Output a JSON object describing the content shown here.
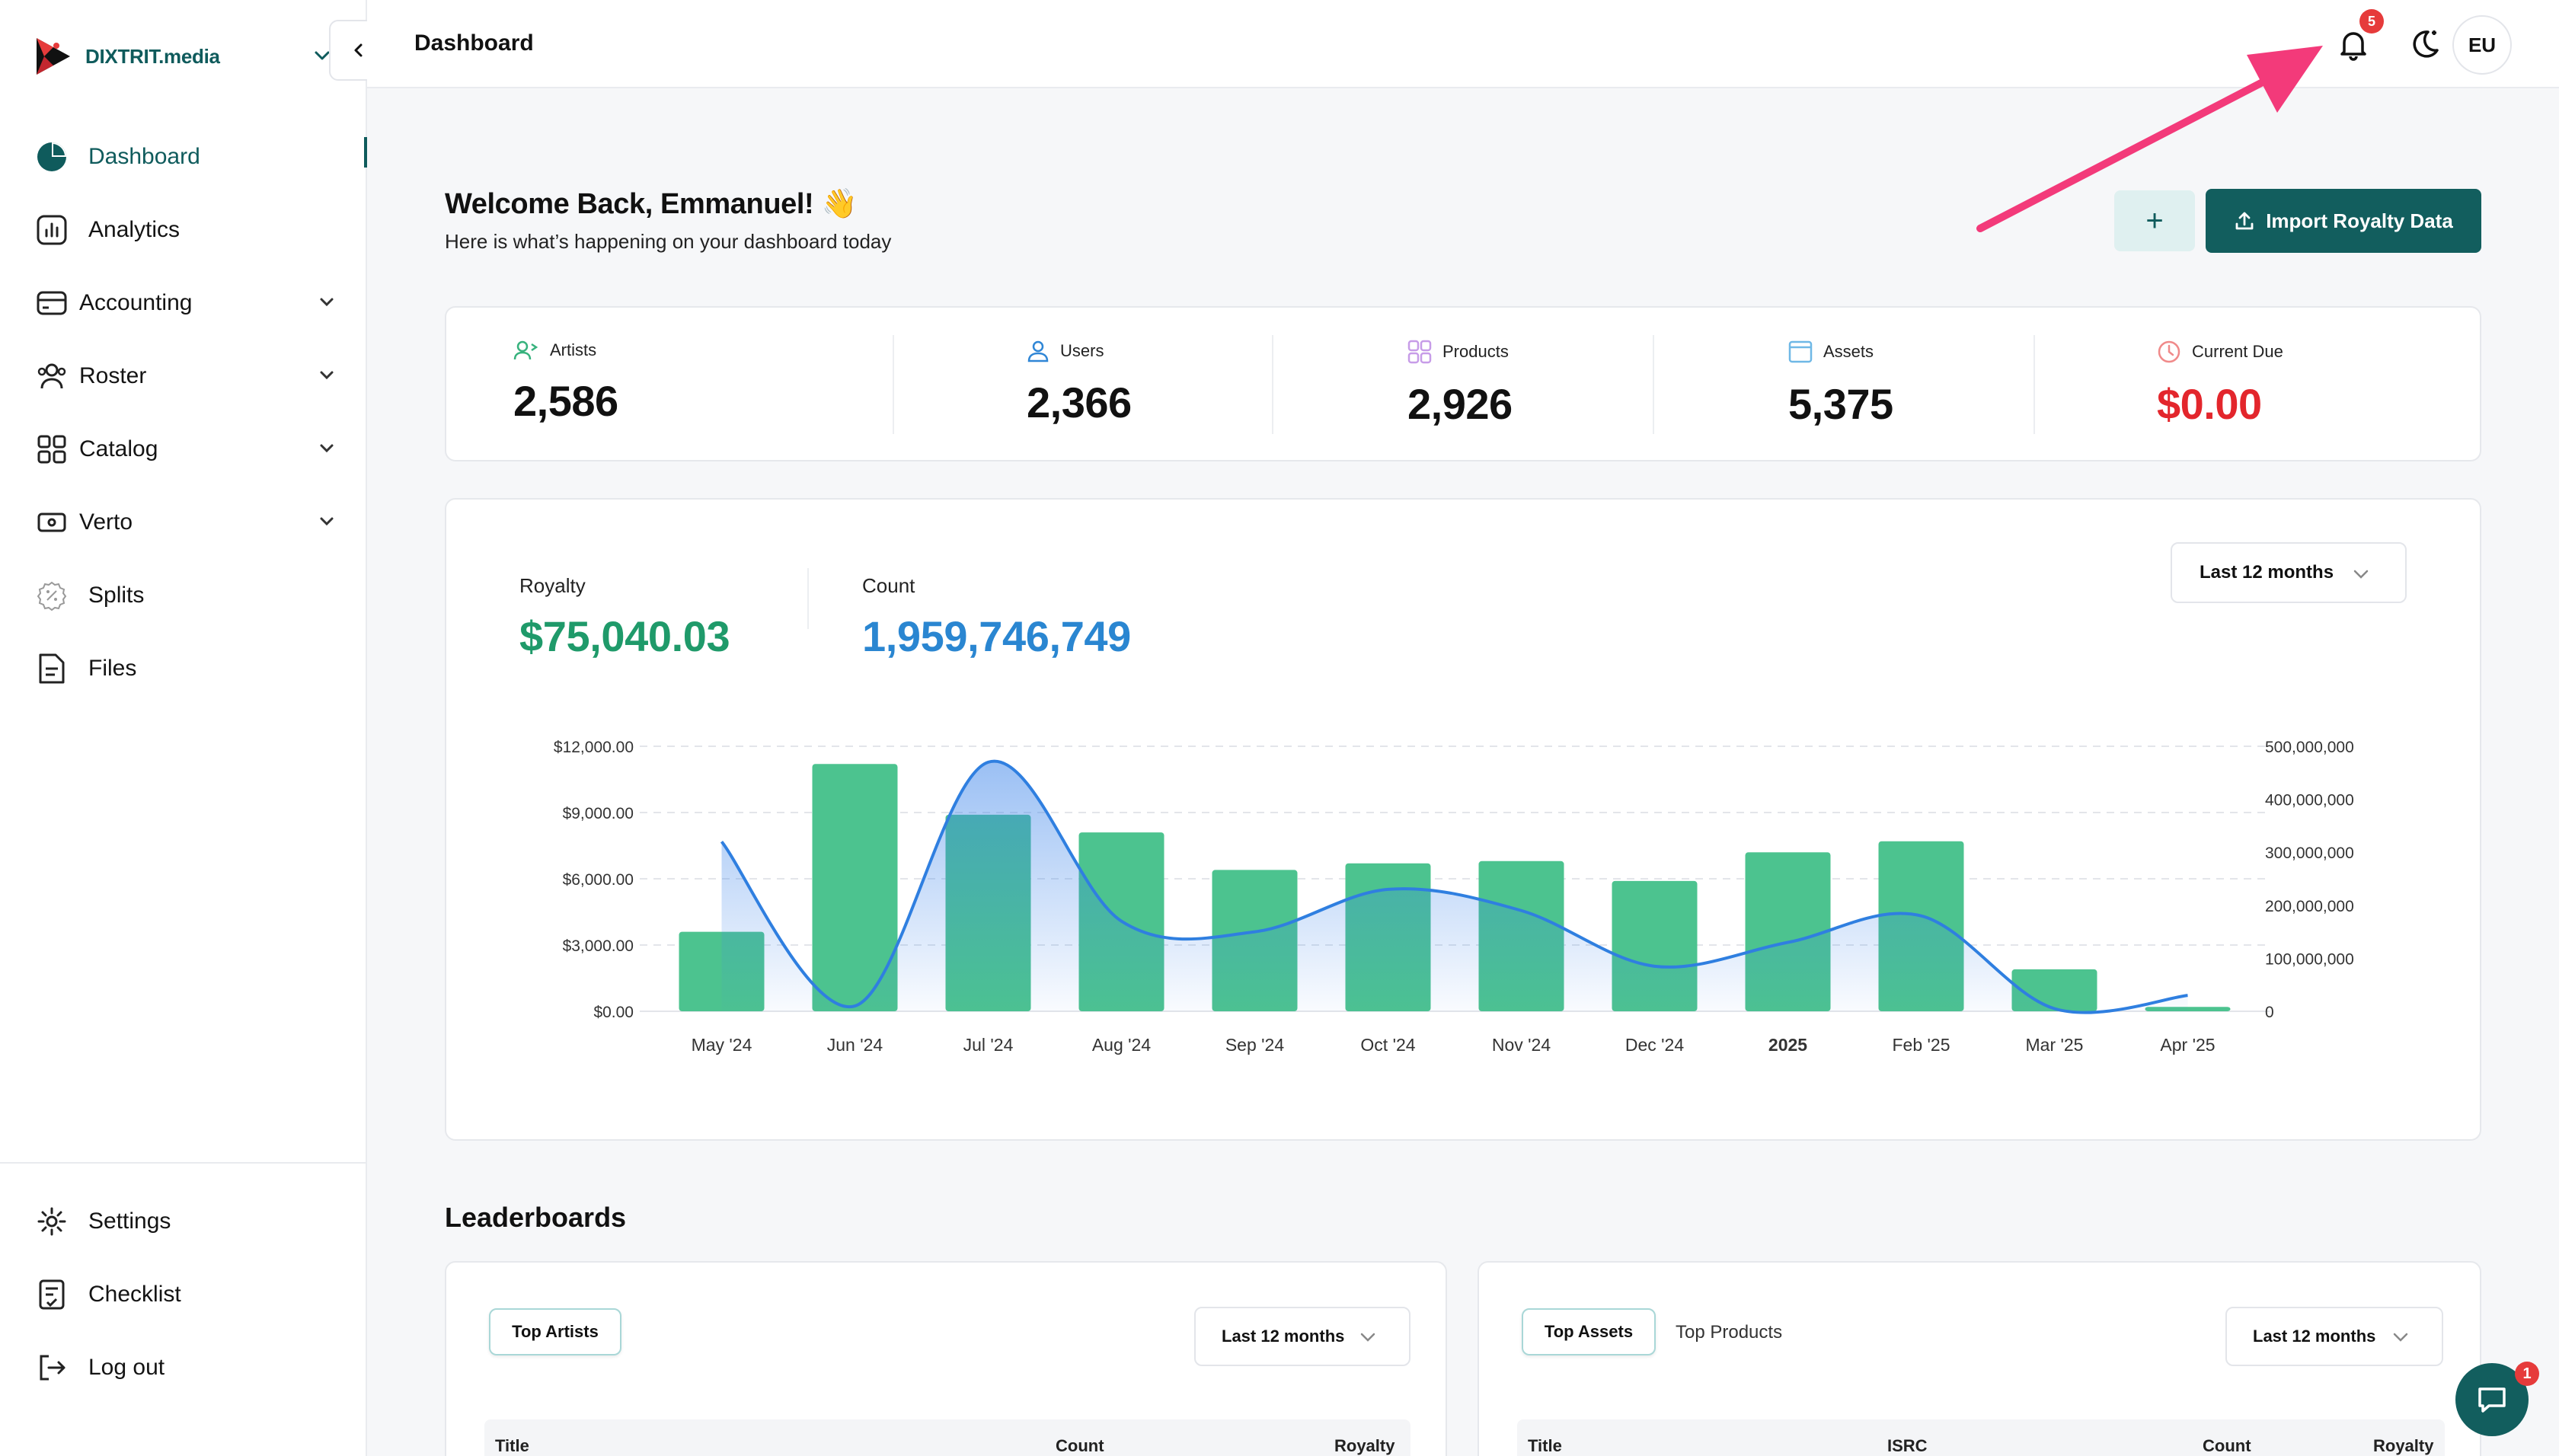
{
  "sidebar": {
    "brand": "DIXTRIT.media",
    "items": [
      {
        "label": "Dashboard",
        "icon": "pie-chart-icon"
      },
      {
        "label": "Analytics",
        "icon": "bar-chart-icon"
      },
      {
        "label": "Accounting",
        "icon": "wallet-icon"
      },
      {
        "label": "Roster",
        "icon": "people-icon"
      },
      {
        "label": "Catalog",
        "icon": "grid-icon"
      },
      {
        "label": "Verto",
        "icon": "money-icon"
      },
      {
        "label": "Splits",
        "icon": "percent-icon"
      },
      {
        "label": "Files",
        "icon": "file-icon"
      }
    ],
    "bottom": [
      {
        "label": "Settings",
        "icon": "gear-icon"
      },
      {
        "label": "Checklist",
        "icon": "checklist-icon"
      },
      {
        "label": "Log out",
        "icon": "logout-icon"
      }
    ]
  },
  "header": {
    "title": "Dashboard",
    "notification_count": "5",
    "avatar": "EU"
  },
  "welcome": {
    "title": "Welcome Back, Emmanuel! 👋",
    "subtitle": "Here is what’s happening on your dashboard today",
    "add_label": "+",
    "import_label": "Import Royalty Data"
  },
  "stats": [
    {
      "label": "Artists",
      "value": "2,586",
      "icon": "artist-icon"
    },
    {
      "label": "Users",
      "value": "2,366",
      "icon": "user-icon"
    },
    {
      "label": "Products",
      "value": "2,926",
      "icon": "products-icon"
    },
    {
      "label": "Assets",
      "value": "5,375",
      "icon": "assets-icon"
    },
    {
      "label": "Current Due",
      "value": "$0.00",
      "icon": "clock-icon"
    }
  ],
  "overview": {
    "royalty_label": "Royalty",
    "royalty_value": "$75,040.03",
    "count_label": "Count",
    "count_value": "1,959,746,749",
    "period": "Last 12 months"
  },
  "chart_data": {
    "type": "bar",
    "categories": [
      "May '24",
      "Jun '24",
      "Jul '24",
      "Aug '24",
      "Sep '24",
      "Oct '24",
      "Nov '24",
      "Dec '24",
      "2025",
      "Feb '25",
      "Mar '25",
      "Apr '25"
    ],
    "series": [
      {
        "name": "Royalty",
        "type": "bar",
        "axis": "left",
        "color": "#4cc38f",
        "values": [
          3600,
          11200,
          8900,
          8100,
          6400,
          6700,
          6800,
          5900,
          7200,
          7700,
          1900,
          200
        ]
      },
      {
        "name": "Count",
        "type": "area",
        "axis": "right",
        "color": "#2f7fe0",
        "values": [
          320000000,
          10000000,
          470000000,
          170000000,
          150000000,
          230000000,
          190000000,
          85000000,
          130000000,
          180000000,
          5000000,
          30000000
        ]
      }
    ],
    "y_left": {
      "ticks": [
        "$0.00",
        "$3,000.00",
        "$6,000.00",
        "$9,000.00",
        "$12,000.00"
      ],
      "range": [
        0,
        12000
      ]
    },
    "y_right": {
      "ticks": [
        "0",
        "100,000,000",
        "200,000,000",
        "300,000,000",
        "400,000,000",
        "500,000,000"
      ],
      "range": [
        0,
        500000000
      ]
    },
    "grid": true
  },
  "leaderboards": {
    "title": "Leaderboards",
    "left": {
      "tab_active": "Top Artists",
      "period": "Last 12 months",
      "columns": [
        "Title",
        "Count",
        "Royalty"
      ]
    },
    "right": {
      "tab_active": "Top Assets",
      "tab_other": "Top Products",
      "period": "Last 12 months",
      "columns": [
        "Title",
        "ISRC",
        "Count",
        "Royalty"
      ]
    }
  },
  "chat_badge": "1",
  "colors": {
    "brand": "#125e5e",
    "accent_green": "#4cc38f",
    "accent_blue": "#2f7fe0",
    "danger": "#e63b3b",
    "royalty_green": "#1f9a6a",
    "count_blue": "#2a86d1"
  }
}
